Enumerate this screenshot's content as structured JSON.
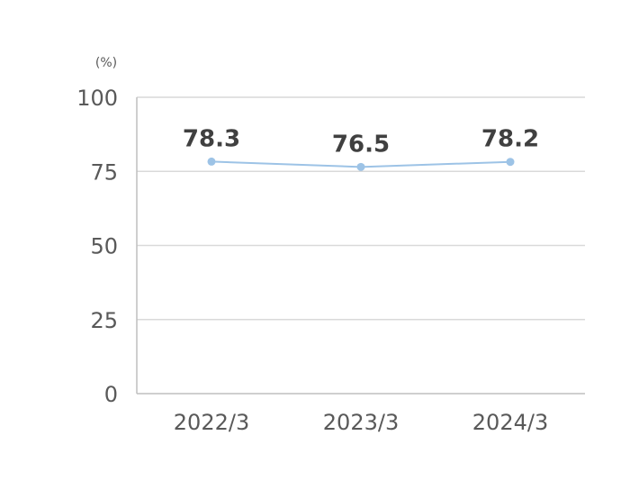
{
  "chart_data": {
    "type": "line",
    "title": "",
    "unit_label": "(%)",
    "xlabel": "",
    "ylabel": "",
    "categories": [
      "2022/3",
      "2023/3",
      "2024/3"
    ],
    "series": [
      {
        "values": [
          78.3,
          76.5,
          78.2
        ],
        "data_labels": [
          "78.3",
          "76.5",
          "78.2"
        ]
      }
    ],
    "ylim": [
      0,
      100
    ],
    "yticks": [
      0,
      25,
      50,
      75,
      100
    ],
    "ytick_labels": [
      "0",
      "25",
      "50",
      "75",
      "100"
    ],
    "grid": true,
    "legend": "none",
    "colors": {
      "line": "#9dc3e6",
      "marker": "#9dc3e6",
      "grid": "#d9d9d9",
      "axis": "#bfbfbf",
      "tick_text": "#595959",
      "data_label_text": "#404040"
    }
  }
}
